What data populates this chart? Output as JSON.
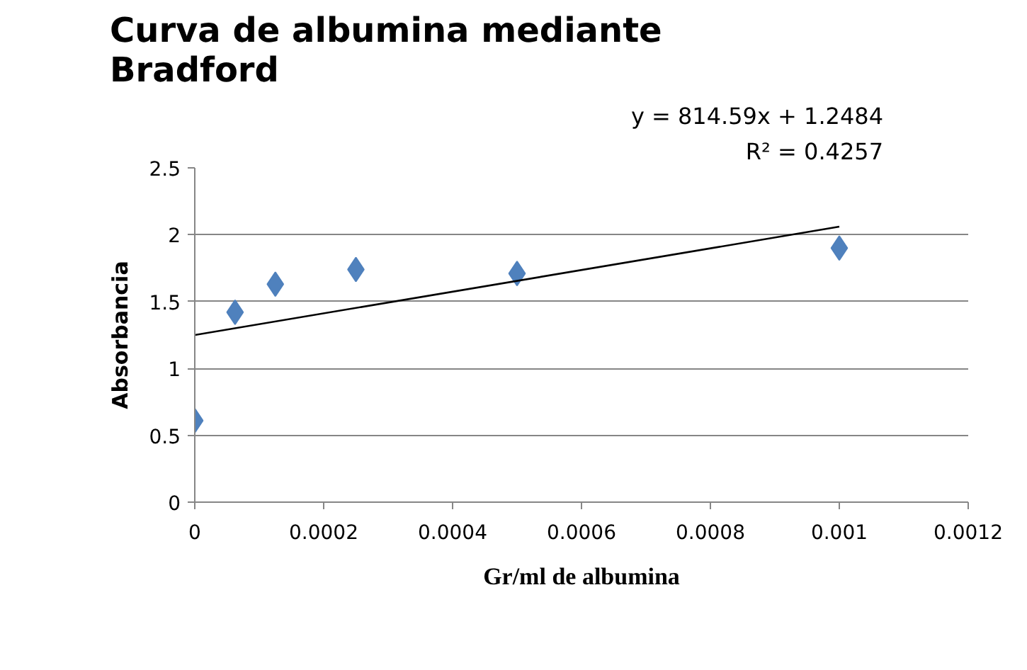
{
  "chart_data": {
    "type": "scatter",
    "title": "Curva de albumina mediante\nBradford",
    "xlabel": "Gr/ml de albumina",
    "ylabel": "Absorbancia",
    "annotations": [
      "y = 814.59x + 1.2484",
      "R² = 0.4257"
    ],
    "x": [
      0,
      6.25e-05,
      0.000125,
      0.00025,
      0.0005,
      0.001
    ],
    "series": [
      {
        "color": "#4f81bd",
        "values": [
          0.61,
          1.42,
          1.63,
          1.74,
          1.71,
          1.9
        ],
        "marker": "diamond"
      },
      {
        "type": "line",
        "color": "#000000",
        "x": [
          0,
          0.001
        ],
        "values": [
          1.25,
          2.06
        ],
        "marker": "none",
        "line_style": "solid"
      }
    ],
    "xlim": [
      0,
      0.0012
    ],
    "ylim": [
      0,
      2.5
    ],
    "xticks": [
      0,
      0.0002,
      0.0004,
      0.0006,
      0.0008,
      0.001,
      0.0012
    ],
    "yticks": [
      0,
      0.5,
      1,
      1.5,
      2,
      2.5
    ],
    "grid": "y"
  }
}
